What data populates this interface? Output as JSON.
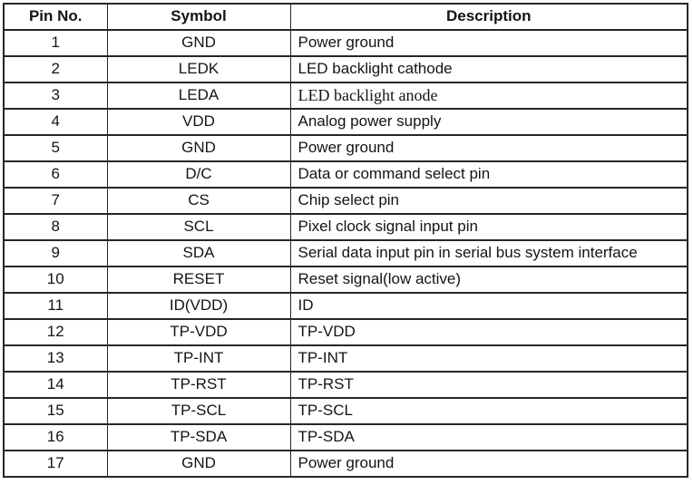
{
  "table": {
    "columns": [
      {
        "key": "pin",
        "label": "Pin No."
      },
      {
        "key": "symbol",
        "label": "Symbol"
      },
      {
        "key": "description",
        "label": "Description"
      }
    ],
    "rows": [
      {
        "pin": "1",
        "symbol": "GND",
        "description": "Power ground",
        "desc_style": "sans"
      },
      {
        "pin": "2",
        "symbol": "LEDK",
        "description": "LED backlight cathode",
        "desc_style": "sans"
      },
      {
        "pin": "3",
        "symbol": "LEDA",
        "description": "LED backlight anode",
        "desc_style": "serif"
      },
      {
        "pin": "4",
        "symbol": "VDD",
        "description": "Analog power supply",
        "desc_style": "sans"
      },
      {
        "pin": "5",
        "symbol": "GND",
        "description": "Power ground",
        "desc_style": "sans"
      },
      {
        "pin": "6",
        "symbol": "D/C",
        "description": "Data or command select pin",
        "desc_style": "sans"
      },
      {
        "pin": "7",
        "symbol": "CS",
        "description": "Chip select pin",
        "desc_style": "sans"
      },
      {
        "pin": "8",
        "symbol": "SCL",
        "description": "Pixel clock signal input pin",
        "desc_style": "sans"
      },
      {
        "pin": "9",
        "symbol": "SDA",
        "description": "Serial data input pin in serial bus system interface",
        "desc_style": "sans"
      },
      {
        "pin": "10",
        "symbol": "RESET",
        "description": "Reset signal(low active)",
        "desc_style": "sans"
      },
      {
        "pin": "11",
        "symbol": "ID(VDD)",
        "description": "ID",
        "desc_style": "sans"
      },
      {
        "pin": "12",
        "symbol": "TP-VDD",
        "description": "TP-VDD",
        "desc_style": "sans"
      },
      {
        "pin": "13",
        "symbol": "TP-INT",
        "description": "TP-INT",
        "desc_style": "sans"
      },
      {
        "pin": "14",
        "symbol": "TP-RST",
        "description": "TP-RST",
        "desc_style": "sans"
      },
      {
        "pin": "15",
        "symbol": "TP-SCL",
        "description": "TP-SCL",
        "desc_style": "sans"
      },
      {
        "pin": "16",
        "symbol": "TP-SDA",
        "description": "TP-SDA",
        "desc_style": "sans"
      },
      {
        "pin": "17",
        "symbol": "GND",
        "description": "Power ground",
        "desc_style": "sans"
      }
    ],
    "colors": {
      "border": "#262626",
      "text": "#141414",
      "background": "#ffffff"
    }
  }
}
